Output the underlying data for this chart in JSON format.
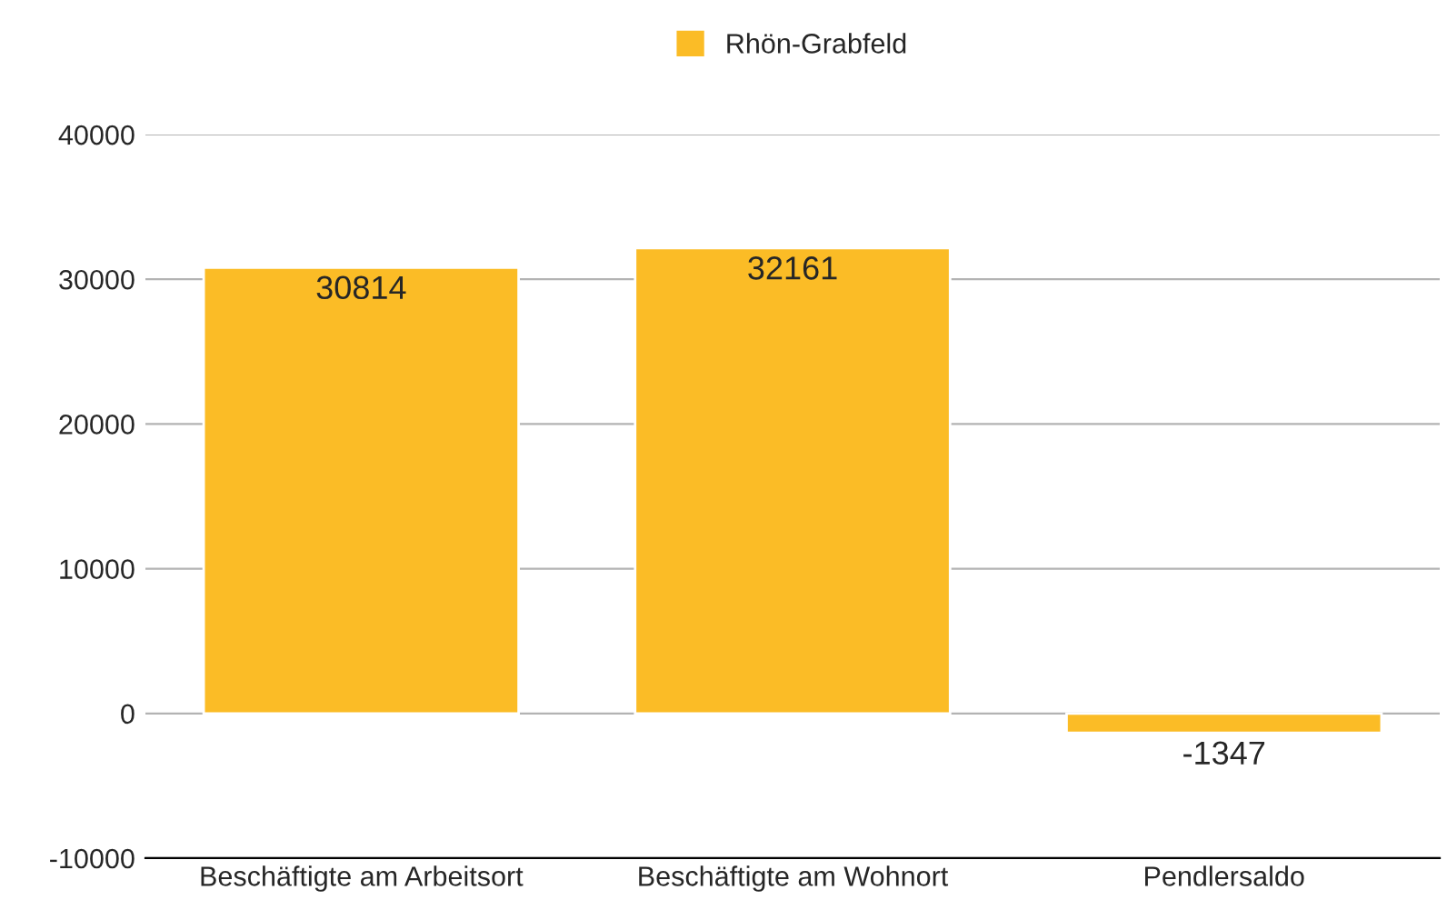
{
  "chart_data": {
    "type": "bar",
    "categories": [
      "Beschäftigte am Arbeitsort",
      "Beschäftigte am Wohnort",
      "Pendlersaldo"
    ],
    "series": [
      {
        "name": "Rhön-Grabfeld",
        "color": "#fbbc26",
        "values": [
          30814,
          32161,
          -1347
        ]
      }
    ],
    "data_labels": true,
    "ylim": [
      -10000,
      40000
    ],
    "yticks": [
      -10000,
      0,
      10000,
      20000,
      30000,
      40000
    ],
    "grid": "y",
    "legend": "top"
  }
}
